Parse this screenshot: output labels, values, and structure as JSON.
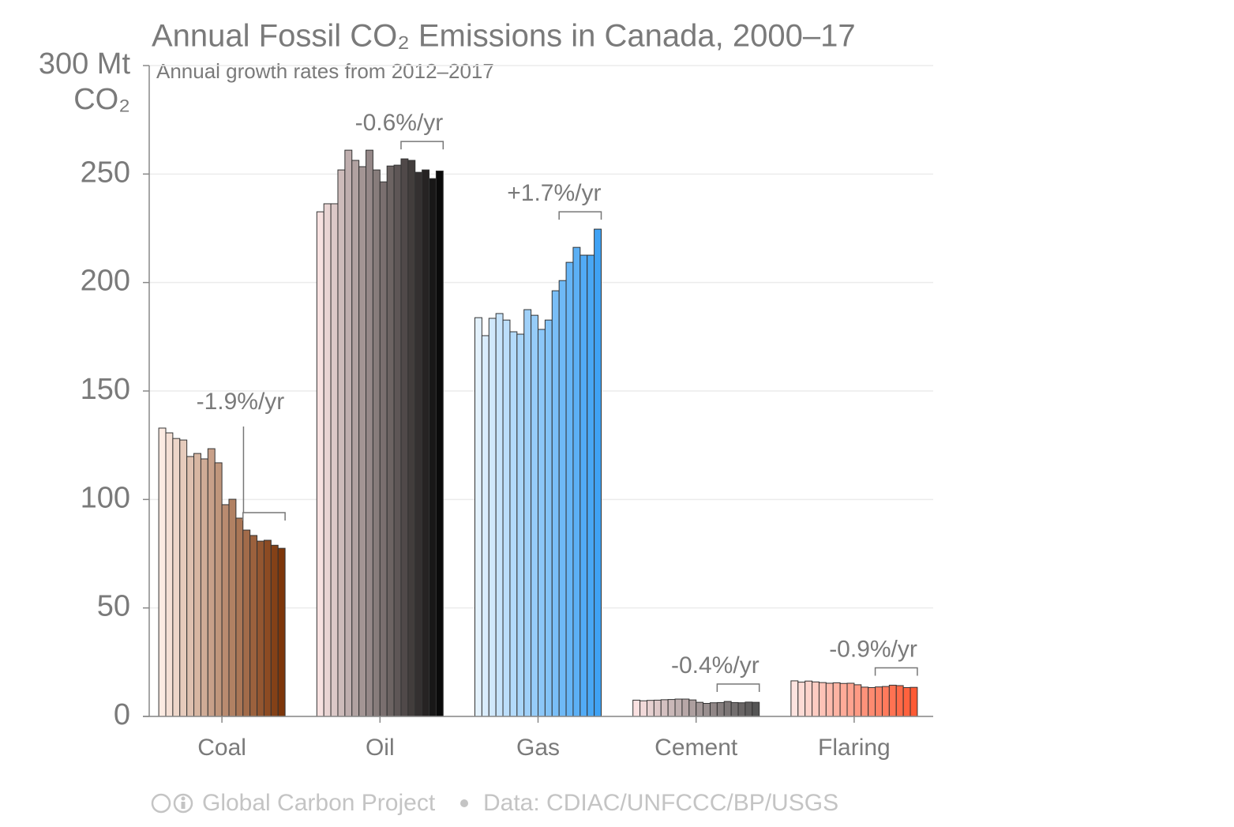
{
  "chart_data": {
    "type": "grouped_gradient_bar",
    "title": "Annual Fossil CO₂ Emissions in Canada, 2000–17",
    "subtitle": "Annual growth rates from 2012–2017",
    "y_unit": "CO₂",
    "ylim": [
      0,
      300
    ],
    "yticks": [
      0,
      50,
      100,
      150,
      200,
      250,
      {
        "value": 300,
        "label": "300 Mt"
      }
    ],
    "grid": true,
    "series": [
      {
        "name": "Coal",
        "colors": [
          "#fcebe2",
          "#7d360a"
        ],
        "annotation": "-1.9%/yr",
        "values": [
          132.9,
          130.7,
          128.1,
          127.4,
          119.8,
          121.2,
          118.7,
          123.4,
          116.9,
          97.6,
          100.1,
          91.4,
          85.9,
          83.4,
          80.8,
          81.2,
          78.9,
          77.5
        ]
      },
      {
        "name": "Oil",
        "colors": [
          "#f7e1e0",
          "#0a0a0a"
        ],
        "annotation": "-0.6%/yr",
        "values": [
          232.6,
          236.3,
          236.3,
          251.9,
          261.0,
          256.3,
          253.4,
          261.0,
          251.9,
          246.4,
          253.7,
          254.1,
          257.0,
          256.3,
          250.8,
          251.9,
          247.9,
          251.4
        ]
      },
      {
        "name": "Gas",
        "colors": [
          "#e3f1fc",
          "#3fa2f4"
        ],
        "annotation": "+1.7%/yr",
        "values": [
          183.8,
          175.5,
          183.5,
          185.7,
          182.7,
          177.3,
          176.2,
          187.5,
          184.9,
          178.4,
          182.7,
          196.2,
          200.9,
          209.3,
          216.2,
          212.6,
          212.6,
          224.6
        ]
      },
      {
        "name": "Cement",
        "colors": [
          "#fbe1e1",
          "#555555"
        ],
        "annotation": "-0.4%/yr",
        "values": [
          7.5,
          7.2,
          7.4,
          7.5,
          7.7,
          7.8,
          8.0,
          8.0,
          7.6,
          6.5,
          6.0,
          6.3,
          6.4,
          6.9,
          6.4,
          6.3,
          6.6,
          6.5
        ]
      },
      {
        "name": "Flaring",
        "colors": [
          "#fde3df",
          "#ff5a34"
        ],
        "annotation": "-0.9%/yr",
        "values": [
          16.4,
          15.8,
          16.3,
          15.9,
          15.6,
          15.3,
          15.5,
          15.2,
          15.3,
          14.6,
          13.5,
          13.3,
          13.6,
          13.8,
          14.4,
          14.2,
          13.3,
          13.4
        ]
      }
    ],
    "source": "Global Carbon Project",
    "data_credit": "Data: CDIAC/UNFCCC/BP/USGS"
  }
}
